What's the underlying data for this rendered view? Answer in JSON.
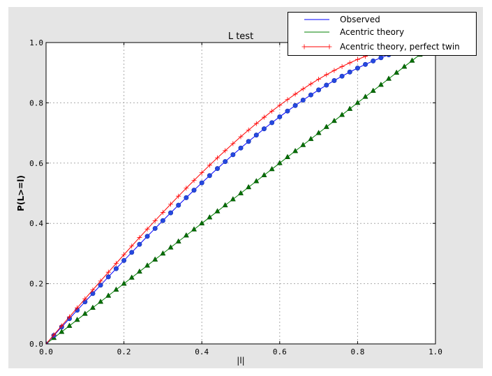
{
  "chart_data": {
    "type": "line",
    "title": "L test",
    "xlabel": "|l|",
    "ylabel": "P(L>=l)",
    "xlim": [
      0,
      1.0
    ],
    "ylim": [
      0,
      1.0
    ],
    "xticks": [
      "0.0",
      "0.2",
      "0.4",
      "0.6",
      "0.8",
      "1.0"
    ],
    "yticks": [
      "0.0",
      "0.2",
      "0.4",
      "0.6",
      "0.8",
      "1.0"
    ],
    "grid": true,
    "legend_position": "top-right",
    "x": [
      0,
      0.02,
      0.04,
      0.06,
      0.08,
      0.1,
      0.12,
      0.14,
      0.16,
      0.18,
      0.2,
      0.22,
      0.24,
      0.26,
      0.28,
      0.3,
      0.32,
      0.34,
      0.36,
      0.38,
      0.4,
      0.42,
      0.44,
      0.46,
      0.48,
      0.5,
      0.52,
      0.54,
      0.56,
      0.58,
      0.6,
      0.62,
      0.64,
      0.66,
      0.68,
      0.7,
      0.72,
      0.74,
      0.76,
      0.78,
      0.8,
      0.82,
      0.84,
      0.86,
      0.88,
      0.9,
      0.92,
      0.94,
      0.96,
      0.98,
      1.0
    ],
    "series": [
      {
        "name": "Observed",
        "color": "#0000ff",
        "marker": "circle",
        "values": [
          0,
          0.028,
          0.056,
          0.0839,
          0.1118,
          0.1396,
          0.1673,
          0.1949,
          0.2224,
          0.2497,
          0.2768,
          0.3037,
          0.3305,
          0.357,
          0.3832,
          0.4092,
          0.4349,
          0.4603,
          0.4853,
          0.5101,
          0.5344,
          0.5584,
          0.5819,
          0.6051,
          0.6278,
          0.65,
          0.6718,
          0.693,
          0.7138,
          0.734,
          0.7536,
          0.7727,
          0.7911,
          0.809,
          0.8262,
          0.8428,
          0.8587,
          0.8739,
          0.8884,
          0.9022,
          0.9152,
          0.9275,
          0.9389,
          0.9496,
          0.9594,
          0.9684,
          0.9765,
          0.9838,
          0.9901,
          0.9955,
          1.0
        ]
      },
      {
        "name": "Acentric theory",
        "color": "#008000",
        "marker": "triangle",
        "values": [
          0,
          0.02,
          0.04,
          0.06,
          0.08,
          0.1,
          0.12,
          0.14,
          0.16,
          0.18,
          0.2,
          0.22,
          0.24,
          0.26,
          0.28,
          0.3,
          0.32,
          0.34,
          0.36,
          0.38,
          0.4,
          0.42,
          0.44,
          0.46,
          0.48,
          0.5,
          0.52,
          0.54,
          0.56,
          0.58,
          0.6,
          0.62,
          0.64,
          0.66,
          0.68,
          0.7,
          0.72,
          0.74,
          0.76,
          0.78,
          0.8,
          0.82,
          0.84,
          0.86,
          0.88,
          0.9,
          0.92,
          0.94,
          0.96,
          0.98,
          1.0
        ]
      },
      {
        "name": "Acentric theory, perfect twin",
        "color": "#ff0000",
        "marker": "plus",
        "values": [
          0,
          0.03,
          0.06,
          0.0899,
          0.1197,
          0.1495,
          0.1791,
          0.2086,
          0.238,
          0.2671,
          0.296,
          0.3247,
          0.3531,
          0.3812,
          0.409,
          0.4365,
          0.4636,
          0.4903,
          0.5167,
          0.5426,
          0.568,
          0.593,
          0.6174,
          0.6413,
          0.6647,
          0.6875,
          0.7097,
          0.7313,
          0.7522,
          0.7724,
          0.792,
          0.8108,
          0.8289,
          0.8463,
          0.8628,
          0.8785,
          0.8934,
          0.9074,
          0.9205,
          0.9327,
          0.944,
          0.9543,
          0.9636,
          0.972,
          0.9793,
          0.9855,
          0.9907,
          0.9947,
          0.9976,
          0.9994,
          1.0
        ]
      }
    ]
  }
}
